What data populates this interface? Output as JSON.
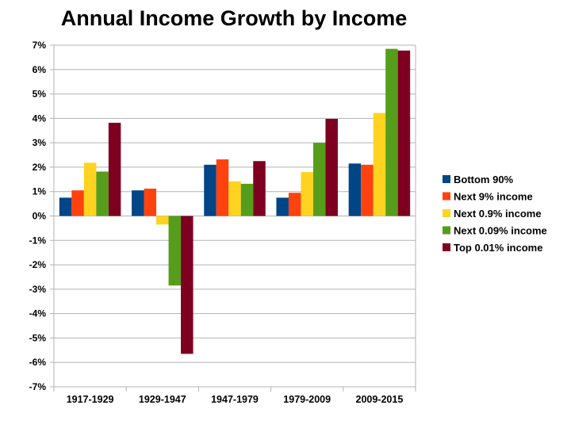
{
  "chart_data": {
    "type": "bar",
    "title": "Annual Income Growth by Income",
    "xlabel": "",
    "ylabel": "",
    "ylim": [
      -7,
      7
    ],
    "yticks": [
      "7%",
      "6%",
      "5%",
      "4%",
      "3%",
      "2%",
      "1%",
      "0%",
      "-1%",
      "-2%",
      "-3%",
      "-4%",
      "-5%",
      "-6%",
      "-7%"
    ],
    "grid": true,
    "legend_position": "right",
    "categories": [
      "1917-1929",
      "1929-1947",
      "1947-1979",
      "1979-2009",
      "2009-2015"
    ],
    "series": [
      {
        "name": "Bottom 90%",
        "color": "#004586",
        "values": [
          0.75,
          1.05,
          2.1,
          0.75,
          2.15
        ]
      },
      {
        "name": "Next 9% income",
        "color": "#ff420e",
        "values": [
          1.05,
          1.12,
          2.32,
          0.95,
          2.1
        ]
      },
      {
        "name": "Next 0.9% income",
        "color": "#ffd320",
        "values": [
          2.18,
          -0.35,
          1.42,
          1.8,
          4.22
        ]
      },
      {
        "name": "Next 0.09% income",
        "color": "#579d1c",
        "values": [
          1.82,
          -2.85,
          1.32,
          3.0,
          6.85
        ]
      },
      {
        "name": "Top 0.01% income",
        "color": "#7e0021",
        "values": [
          3.82,
          -5.65,
          2.25,
          3.98,
          6.78
        ]
      }
    ]
  }
}
